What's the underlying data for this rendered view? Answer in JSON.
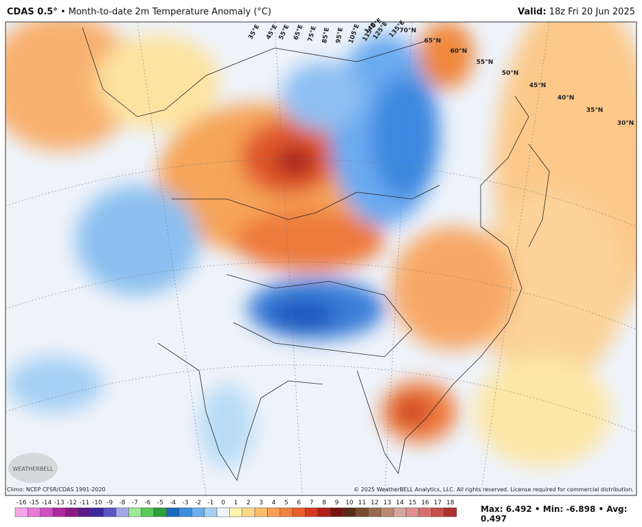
{
  "header": {
    "product": "CDAS 0.5°",
    "separator": "•",
    "title": "Month-to-date 2m Temperature Anomaly (°C)",
    "valid_label": "Valid:",
    "valid_time": "18z Fri 20 Jun 2025"
  },
  "map": {
    "graticule_labels": [
      "35°E",
      "45°E",
      "55°E",
      "65°E",
      "75°E",
      "85°E",
      "95°E",
      "105°E",
      "115°E",
      "125°E",
      "135°E",
      "140°E",
      "70°N",
      "65°N",
      "60°N",
      "55°N",
      "50°N",
      "45°N",
      "40°N",
      "35°N",
      "30°N"
    ],
    "logo": "WEATHERBELL"
  },
  "footer": {
    "climo": "Climo: NCEP CFSR/CDAS 1991-2020",
    "copyright": "© 2025 WeatherBELL Analytics, LLC. All rights reserved. License required for commercial distribution."
  },
  "colorbar": {
    "ticks": [
      -16,
      -15,
      -14,
      -13,
      -12,
      -11,
      -10,
      -9,
      -8,
      -7,
      -6,
      -5,
      -4,
      -3,
      -2,
      -1,
      0,
      1,
      2,
      3,
      4,
      5,
      6,
      7,
      8,
      9,
      10,
      11,
      12,
      13,
      14,
      15,
      16,
      17,
      18
    ],
    "colors": [
      "#f7a6e8",
      "#e87ad8",
      "#d24ec5",
      "#b0289f",
      "#8a1a86",
      "#5a1a8a",
      "#3a2a9e",
      "#5a56c8",
      "#a5a5e8",
      "#9ee89a",
      "#5cc85a",
      "#2e9e3a",
      "#1a6ac0",
      "#3a8fe0",
      "#6aaef0",
      "#a6d0f5",
      "#eef4fb",
      "#fff3b0",
      "#ffd98a",
      "#fcbd6a",
      "#f8a050",
      "#f2803e",
      "#e85d2e",
      "#d23a22",
      "#b02018",
      "#7a1010",
      "#5a2a1a",
      "#7a4a30",
      "#9a6a50",
      "#b88a70",
      "#d4a898",
      "#e09090",
      "#d87070",
      "#c85050",
      "#b03030"
    ]
  },
  "stats": [
    {
      "label": "Max:",
      "value": 6.492
    },
    {
      "label": "Min:",
      "value": -6.898
    },
    {
      "label": "Avg:",
      "value": 0.497
    }
  ],
  "stats_separator": "•"
}
